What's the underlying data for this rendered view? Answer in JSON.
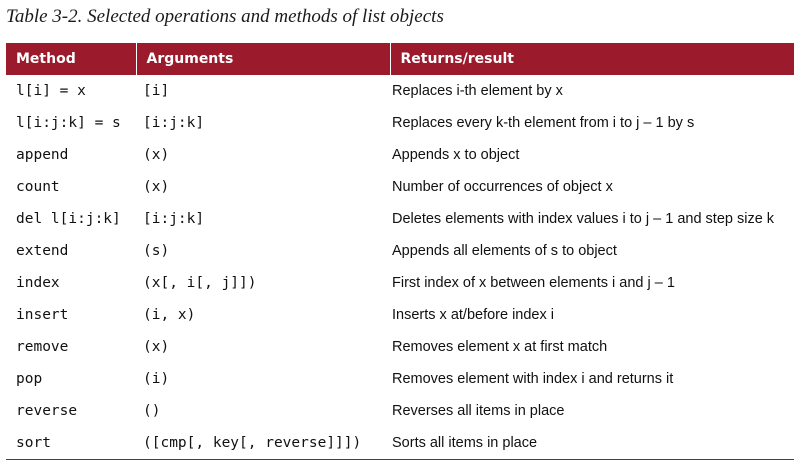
{
  "caption": "Table 3-2. Selected operations and methods of list objects",
  "accent_color": "#9b1b2c",
  "table": {
    "headers": [
      "Method",
      "Arguments",
      "Returns/result"
    ],
    "rows": [
      {
        "method": "l[i] = x",
        "arguments": "[i]",
        "result": "Replaces i-th element by x"
      },
      {
        "method": "l[i:j:k] = s",
        "arguments": "[i:j:k]",
        "result": "Replaces every k-th element from i to j – 1 by s"
      },
      {
        "method": "append",
        "arguments": "(x)",
        "result": "Appends x to object"
      },
      {
        "method": "count",
        "arguments": "(x)",
        "result": "Number of occurrences of object x"
      },
      {
        "method": "del l[i:j:k]",
        "arguments": "[i:j:k]",
        "result": "Deletes elements with index values i to j – 1 and step size k"
      },
      {
        "method": "extend",
        "arguments": "(s)",
        "result": "Appends all elements of s to object"
      },
      {
        "method": "index",
        "arguments": "(x[, i[, j]])",
        "result": "First index of x between elements i and j – 1"
      },
      {
        "method": "insert",
        "arguments": "(i, x)",
        "result": "Inserts x at/before index i"
      },
      {
        "method": "remove",
        "arguments": "(x)",
        "result": "Removes element x at first match"
      },
      {
        "method": "pop",
        "arguments": "(i)",
        "result": "Removes element with index i and returns it"
      },
      {
        "method": "reverse",
        "arguments": "()",
        "result": "Reverses all items in place"
      },
      {
        "method": "sort",
        "arguments": "([cmp[, key[, reverse]]])",
        "result": "Sorts all items in place"
      }
    ]
  }
}
